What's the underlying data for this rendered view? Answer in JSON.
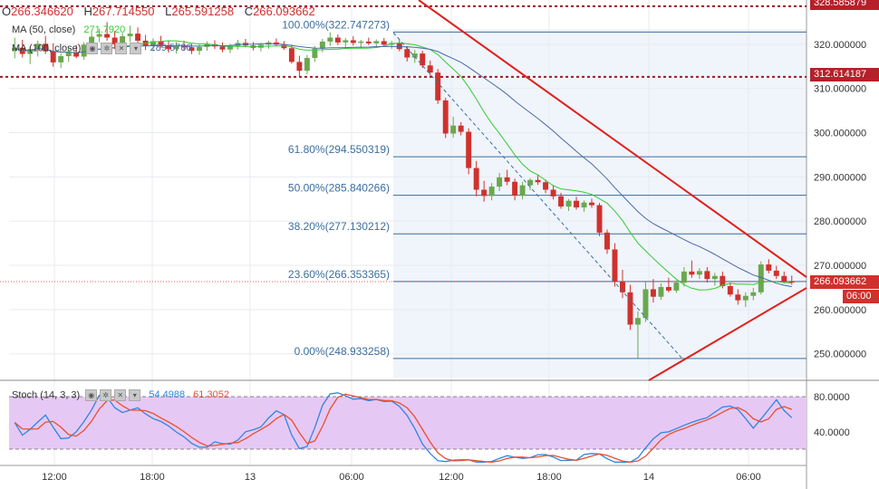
{
  "header": {
    "open_label": "O",
    "open": "266.346620",
    "high_label": "H",
    "high": "267.714550",
    "low_label": "L",
    "low": "265.591258",
    "close_label": "C",
    "close": "266.093662"
  },
  "ma50": {
    "label": "MA (50, close)",
    "value": "271.7920",
    "color": "#33cc33"
  },
  "ma100": {
    "label": "MA (100, close)",
    "value": "289.5786",
    "color": "#4a6aa8"
  },
  "stoch": {
    "label": "Stoch (14, 3, 3)",
    "k_value": "54.4988",
    "d_value": "61.3052",
    "k_color": "#2e86de",
    "d_color": "#e8502e"
  },
  "price_tags": {
    "top_line": "328.585879",
    "red_line": "312.614187",
    "last_price": "266.093662",
    "countdown": "06:00"
  },
  "colors": {
    "up": "#6aa84f",
    "down": "#d0312d",
    "fib": "#3c6e9e",
    "trendline": "#e0201b",
    "stoch_bg": "#e6c8f5"
  },
  "chart_data": {
    "type": "candlestick",
    "x_tick_labels": [
      "12:00",
      "18:00",
      "13",
      "06:00",
      "12:00",
      "18:00",
      "14",
      "06:00"
    ],
    "y_tick_labels": [
      "250.000000",
      "260.000000",
      "270.000000",
      "280.000000",
      "290.000000",
      "300.000000",
      "310.000000",
      "320.000000"
    ],
    "ylim": [
      244,
      330
    ],
    "fibonacci": [
      {
        "label": "100.00%(322.747273)",
        "level": 322.747273
      },
      {
        "label": "61.80%(294.550319)",
        "level": 294.550319
      },
      {
        "label": "50.00%(285.840266)",
        "level": 285.840266
      },
      {
        "label": "38.20%(277.130212)",
        "level": 277.130212
      },
      {
        "label": "23.60%(266.353365)",
        "level": 266.353365
      },
      {
        "label": "0.00%(248.933258)",
        "level": 248.933258
      }
    ],
    "horizontal_levels": [
      328.585879,
      312.614187
    ],
    "stoch_ticks": [
      "80.0000",
      "40.0000"
    ],
    "candles": [
      {
        "o": 318.5,
        "h": 321.5,
        "l": 316.8,
        "c": 319.2
      },
      {
        "o": 319.2,
        "h": 321.0,
        "l": 317.0,
        "c": 317.8
      },
      {
        "o": 317.8,
        "h": 319.5,
        "l": 315.5,
        "c": 318.9
      },
      {
        "o": 318.9,
        "h": 320.8,
        "l": 317.2,
        "c": 320.1
      },
      {
        "o": 320.1,
        "h": 321.9,
        "l": 317.8,
        "c": 318.4
      },
      {
        "o": 318.4,
        "h": 320.2,
        "l": 314.9,
        "c": 315.9
      },
      {
        "o": 315.9,
        "h": 318.0,
        "l": 314.6,
        "c": 317.3
      },
      {
        "o": 317.3,
        "h": 319.2,
        "l": 316.0,
        "c": 318.1
      },
      {
        "o": 318.1,
        "h": 319.8,
        "l": 316.8,
        "c": 317.2
      },
      {
        "o": 317.2,
        "h": 320.5,
        "l": 316.5,
        "c": 319.9
      },
      {
        "o": 319.9,
        "h": 322.6,
        "l": 318.9,
        "c": 321.7
      },
      {
        "o": 321.7,
        "h": 323.5,
        "l": 320.4,
        "c": 322.3
      },
      {
        "o": 322.3,
        "h": 325.0,
        "l": 320.8,
        "c": 321.5
      },
      {
        "o": 321.5,
        "h": 323.0,
        "l": 318.9,
        "c": 320.0
      },
      {
        "o": 320.0,
        "h": 322.5,
        "l": 318.6,
        "c": 321.8
      },
      {
        "o": 321.8,
        "h": 324.2,
        "l": 320.5,
        "c": 322.4
      },
      {
        "o": 322.4,
        "h": 323.8,
        "l": 320.1,
        "c": 320.8
      },
      {
        "o": 320.8,
        "h": 322.1,
        "l": 318.7,
        "c": 319.6
      },
      {
        "o": 319.6,
        "h": 321.3,
        "l": 318.4,
        "c": 320.7
      },
      {
        "o": 320.7,
        "h": 321.9,
        "l": 319.2,
        "c": 319.8
      },
      {
        "o": 319.8,
        "h": 320.9,
        "l": 318.1,
        "c": 318.9
      },
      {
        "o": 318.9,
        "h": 320.5,
        "l": 317.9,
        "c": 319.7
      },
      {
        "o": 319.7,
        "h": 320.8,
        "l": 318.6,
        "c": 319.3
      },
      {
        "o": 319.3,
        "h": 320.1,
        "l": 317.8,
        "c": 318.5
      },
      {
        "o": 318.5,
        "h": 319.9,
        "l": 317.6,
        "c": 319.4
      },
      {
        "o": 319.4,
        "h": 320.6,
        "l": 318.5,
        "c": 320.0
      },
      {
        "o": 320.0,
        "h": 320.9,
        "l": 318.9,
        "c": 319.5
      },
      {
        "o": 319.5,
        "h": 320.4,
        "l": 318.2,
        "c": 318.8
      },
      {
        "o": 318.8,
        "h": 320.1,
        "l": 318.0,
        "c": 319.6
      },
      {
        "o": 319.6,
        "h": 321.0,
        "l": 318.8,
        "c": 320.3
      },
      {
        "o": 320.3,
        "h": 321.2,
        "l": 319.3,
        "c": 319.7
      },
      {
        "o": 319.7,
        "h": 320.5,
        "l": 318.6,
        "c": 319.2
      },
      {
        "o": 319.2,
        "h": 320.3,
        "l": 318.4,
        "c": 319.9
      },
      {
        "o": 319.9,
        "h": 320.8,
        "l": 319.0,
        "c": 320.4
      },
      {
        "o": 320.4,
        "h": 321.3,
        "l": 319.5,
        "c": 319.9
      },
      {
        "o": 319.9,
        "h": 320.7,
        "l": 318.7,
        "c": 319.1
      },
      {
        "o": 319.1,
        "h": 319.9,
        "l": 315.6,
        "c": 316.0
      },
      {
        "o": 316.0,
        "h": 317.4,
        "l": 312.8,
        "c": 314.0
      },
      {
        "o": 314.0,
        "h": 317.6,
        "l": 313.2,
        "c": 316.9
      },
      {
        "o": 316.9,
        "h": 319.6,
        "l": 316.0,
        "c": 319.0
      },
      {
        "o": 319.0,
        "h": 321.2,
        "l": 318.2,
        "c": 320.6
      },
      {
        "o": 320.6,
        "h": 322.7,
        "l": 319.6,
        "c": 321.5
      },
      {
        "o": 321.5,
        "h": 322.2,
        "l": 319.8,
        "c": 320.4
      },
      {
        "o": 320.4,
        "h": 321.4,
        "l": 319.3,
        "c": 320.9
      },
      {
        "o": 320.9,
        "h": 321.8,
        "l": 319.7,
        "c": 320.3
      },
      {
        "o": 320.3,
        "h": 321.0,
        "l": 319.1,
        "c": 320.6
      },
      {
        "o": 320.6,
        "h": 321.5,
        "l": 319.8,
        "c": 320.2
      },
      {
        "o": 320.2,
        "h": 321.1,
        "l": 319.2,
        "c": 320.7
      },
      {
        "o": 320.7,
        "h": 321.4,
        "l": 319.4,
        "c": 319.9
      },
      {
        "o": 319.9,
        "h": 320.8,
        "l": 318.9,
        "c": 320.3
      },
      {
        "o": 320.3,
        "h": 320.9,
        "l": 318.4,
        "c": 318.9
      },
      {
        "o": 318.9,
        "h": 319.6,
        "l": 316.1,
        "c": 317.0
      },
      {
        "o": 317.0,
        "h": 318.7,
        "l": 315.8,
        "c": 317.9
      },
      {
        "o": 317.9,
        "h": 318.5,
        "l": 314.6,
        "c": 315.2
      },
      {
        "o": 315.2,
        "h": 316.3,
        "l": 312.9,
        "c": 313.6
      },
      {
        "o": 313.6,
        "h": 314.4,
        "l": 306.5,
        "c": 307.3
      },
      {
        "o": 307.3,
        "h": 307.9,
        "l": 298.8,
        "c": 299.8
      },
      {
        "o": 299.8,
        "h": 303.6,
        "l": 298.9,
        "c": 301.6
      },
      {
        "o": 301.6,
        "h": 302.4,
        "l": 299.4,
        "c": 300.2
      },
      {
        "o": 300.2,
        "h": 301.0,
        "l": 290.6,
        "c": 292.0
      },
      {
        "o": 292.0,
        "h": 293.6,
        "l": 285.6,
        "c": 287.1
      },
      {
        "o": 287.1,
        "h": 289.1,
        "l": 284.4,
        "c": 285.7
      },
      {
        "o": 285.7,
        "h": 288.6,
        "l": 284.7,
        "c": 287.8
      },
      {
        "o": 287.8,
        "h": 290.9,
        "l": 286.8,
        "c": 289.9
      },
      {
        "o": 289.9,
        "h": 291.6,
        "l": 288.1,
        "c": 288.9
      },
      {
        "o": 288.9,
        "h": 289.6,
        "l": 284.7,
        "c": 285.8
      },
      {
        "o": 285.8,
        "h": 288.9,
        "l": 284.9,
        "c": 288.1
      },
      {
        "o": 288.1,
        "h": 289.7,
        "l": 287.0,
        "c": 289.3
      },
      {
        "o": 289.3,
        "h": 290.4,
        "l": 288.2,
        "c": 288.8
      },
      {
        "o": 288.8,
        "h": 289.4,
        "l": 286.3,
        "c": 287.1
      },
      {
        "o": 287.1,
        "h": 288.2,
        "l": 284.9,
        "c": 285.6
      },
      {
        "o": 285.6,
        "h": 286.4,
        "l": 282.8,
        "c": 283.3
      },
      {
        "o": 283.3,
        "h": 285.0,
        "l": 282.3,
        "c": 284.6
      },
      {
        "o": 284.6,
        "h": 285.5,
        "l": 282.6,
        "c": 283.1
      },
      {
        "o": 283.1,
        "h": 284.7,
        "l": 282.1,
        "c": 284.2
      },
      {
        "o": 284.2,
        "h": 285.1,
        "l": 283.0,
        "c": 283.6
      },
      {
        "o": 283.6,
        "h": 284.1,
        "l": 276.6,
        "c": 277.4
      },
      {
        "o": 277.4,
        "h": 278.1,
        "l": 272.6,
        "c": 273.6
      },
      {
        "o": 273.6,
        "h": 275.0,
        "l": 265.2,
        "c": 266.3
      },
      {
        "o": 266.3,
        "h": 269.0,
        "l": 262.6,
        "c": 263.9
      },
      {
        "o": 263.9,
        "h": 265.6,
        "l": 255.4,
        "c": 256.6
      },
      {
        "o": 256.6,
        "h": 259.6,
        "l": 249.0,
        "c": 258.1
      },
      {
        "o": 258.1,
        "h": 266.3,
        "l": 257.2,
        "c": 264.6
      },
      {
        "o": 264.6,
        "h": 266.9,
        "l": 261.6,
        "c": 262.9
      },
      {
        "o": 262.9,
        "h": 265.9,
        "l": 262.2,
        "c": 265.1
      },
      {
        "o": 265.1,
        "h": 267.2,
        "l": 263.9,
        "c": 264.3
      },
      {
        "o": 264.3,
        "h": 266.6,
        "l": 263.8,
        "c": 266.1
      },
      {
        "o": 266.1,
        "h": 269.6,
        "l": 265.2,
        "c": 268.6
      },
      {
        "o": 268.6,
        "h": 271.1,
        "l": 267.2,
        "c": 267.9
      },
      {
        "o": 267.9,
        "h": 269.4,
        "l": 266.9,
        "c": 268.7
      },
      {
        "o": 268.7,
        "h": 269.6,
        "l": 266.1,
        "c": 266.9
      },
      {
        "o": 266.9,
        "h": 268.3,
        "l": 265.4,
        "c": 267.6
      },
      {
        "o": 267.6,
        "h": 268.6,
        "l": 264.8,
        "c": 265.3
      },
      {
        "o": 265.3,
        "h": 266.1,
        "l": 262.9,
        "c": 263.4
      },
      {
        "o": 263.4,
        "h": 264.6,
        "l": 261.1,
        "c": 262.1
      },
      {
        "o": 262.1,
        "h": 263.9,
        "l": 260.6,
        "c": 263.1
      },
      {
        "o": 263.1,
        "h": 264.9,
        "l": 262.1,
        "c": 263.9
      },
      {
        "o": 263.9,
        "h": 270.9,
        "l": 263.4,
        "c": 270.2
      },
      {
        "o": 270.2,
        "h": 271.4,
        "l": 268.2,
        "c": 268.8
      },
      {
        "o": 268.8,
        "h": 269.9,
        "l": 266.9,
        "c": 267.6
      },
      {
        "o": 267.6,
        "h": 268.6,
        "l": 265.9,
        "c": 266.4
      },
      {
        "o": 266.3,
        "h": 267.7,
        "l": 265.6,
        "c": 266.1
      }
    ]
  }
}
